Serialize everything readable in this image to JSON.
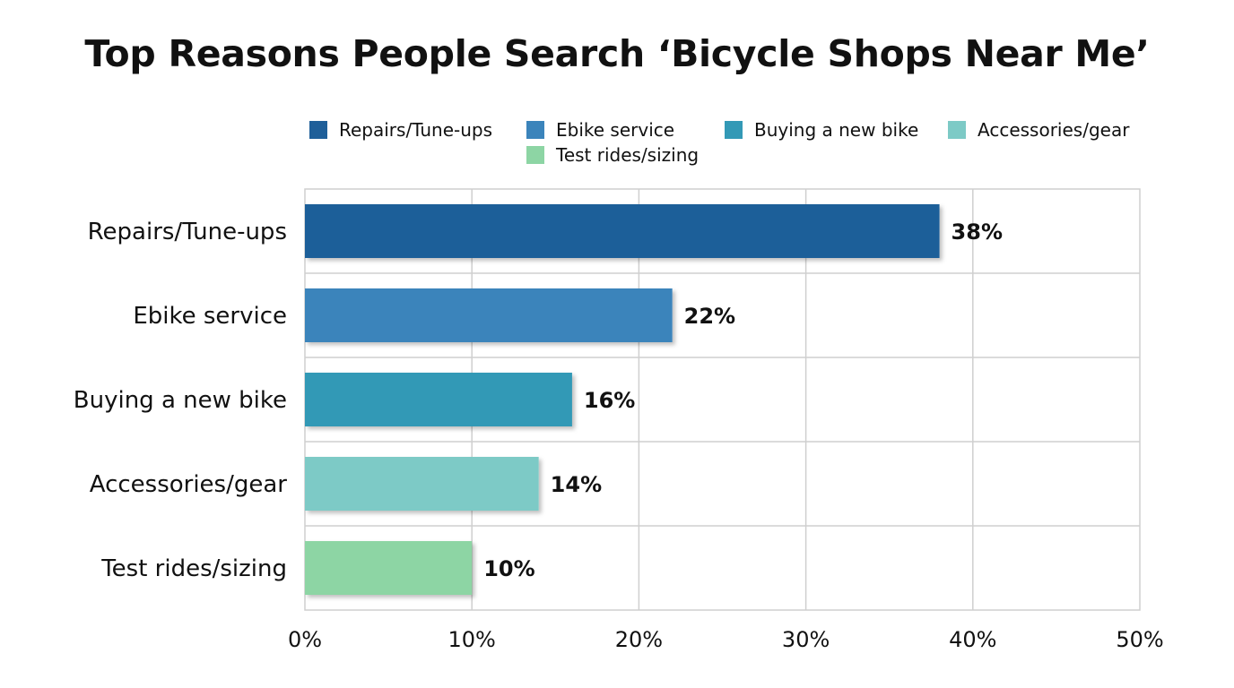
{
  "chart_data": {
    "type": "bar",
    "orientation": "horizontal",
    "title": "Top Reasons People Search ‘Bicycle Shops Near Me’",
    "categories": [
      "Repairs/Tune-ups",
      "Ebike service",
      "Buying a new bike",
      "Accessories/gear",
      "Test rides/sizing"
    ],
    "values": [
      38,
      22,
      16,
      14,
      10
    ],
    "value_labels": [
      "38%",
      "22%",
      "16%",
      "14%",
      "10%"
    ],
    "colors": [
      "#1f5f99",
      "#3b84bb",
      "#3399b6",
      "#7dcac6",
      "#8dd5a4"
    ],
    "legend": [
      "Repairs/Tune-ups",
      "Ebike service",
      "Buying a new bike",
      "Accessories/gear",
      "Test rides/sizing"
    ],
    "legend_position": "top",
    "xlim": [
      0,
      50
    ],
    "xticks": [
      0,
      10,
      20,
      30,
      40,
      50
    ],
    "xtick_labels": [
      "0%",
      "10%",
      "20%",
      "30%",
      "40%",
      "50%"
    ],
    "grid": true,
    "xlabel": "",
    "ylabel": ""
  }
}
